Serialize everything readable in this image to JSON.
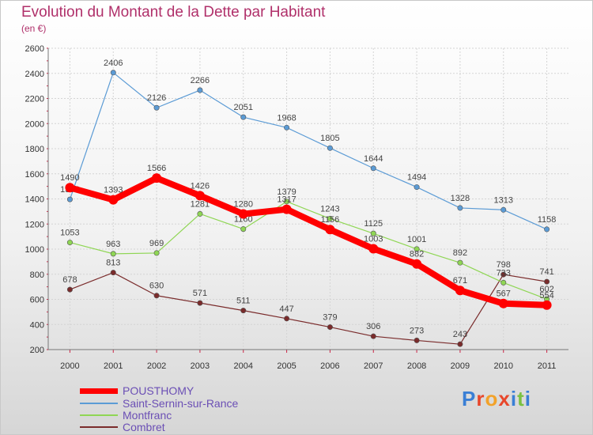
{
  "title": "Evolution du Montant de la Dette par Habitant",
  "subtitle": "(en €)",
  "logo": "Proxiti",
  "chart_data": {
    "type": "line",
    "categories": [
      "2000",
      "2001",
      "2002",
      "2003",
      "2004",
      "2005",
      "2006",
      "2007",
      "2008",
      "2009",
      "2010",
      "2011"
    ],
    "ylim": [
      200,
      2600
    ],
    "yticks": [
      200,
      400,
      600,
      800,
      1000,
      1200,
      1400,
      1600,
      1800,
      2000,
      2200,
      2400,
      2600
    ],
    "grid": true,
    "legend": "bottom-left",
    "series": [
      {
        "name": "POUSTHOMY",
        "color": "#ff0000",
        "values": [
          1490,
          1393,
          1566,
          1426,
          1280,
          1317,
          1156,
          1003,
          882,
          671,
          567,
          554
        ]
      },
      {
        "name": "Saint-Sernin-sur-Rance",
        "color": "#5b9bd5",
        "values": [
          1396,
          2406,
          2126,
          2266,
          2051,
          1968,
          1805,
          1644,
          1494,
          1328,
          1313,
          1158
        ]
      },
      {
        "name": "Montfranc",
        "color": "#8fd654",
        "values": [
          1053,
          963,
          969,
          1281,
          1160,
          1379,
          1243,
          1125,
          1001,
          892,
          733,
          602
        ]
      },
      {
        "name": "Combret",
        "color": "#7a2b2b",
        "values": [
          678,
          813,
          630,
          571,
          511,
          447,
          379,
          306,
          273,
          243,
          798,
          741
        ]
      }
    ]
  }
}
